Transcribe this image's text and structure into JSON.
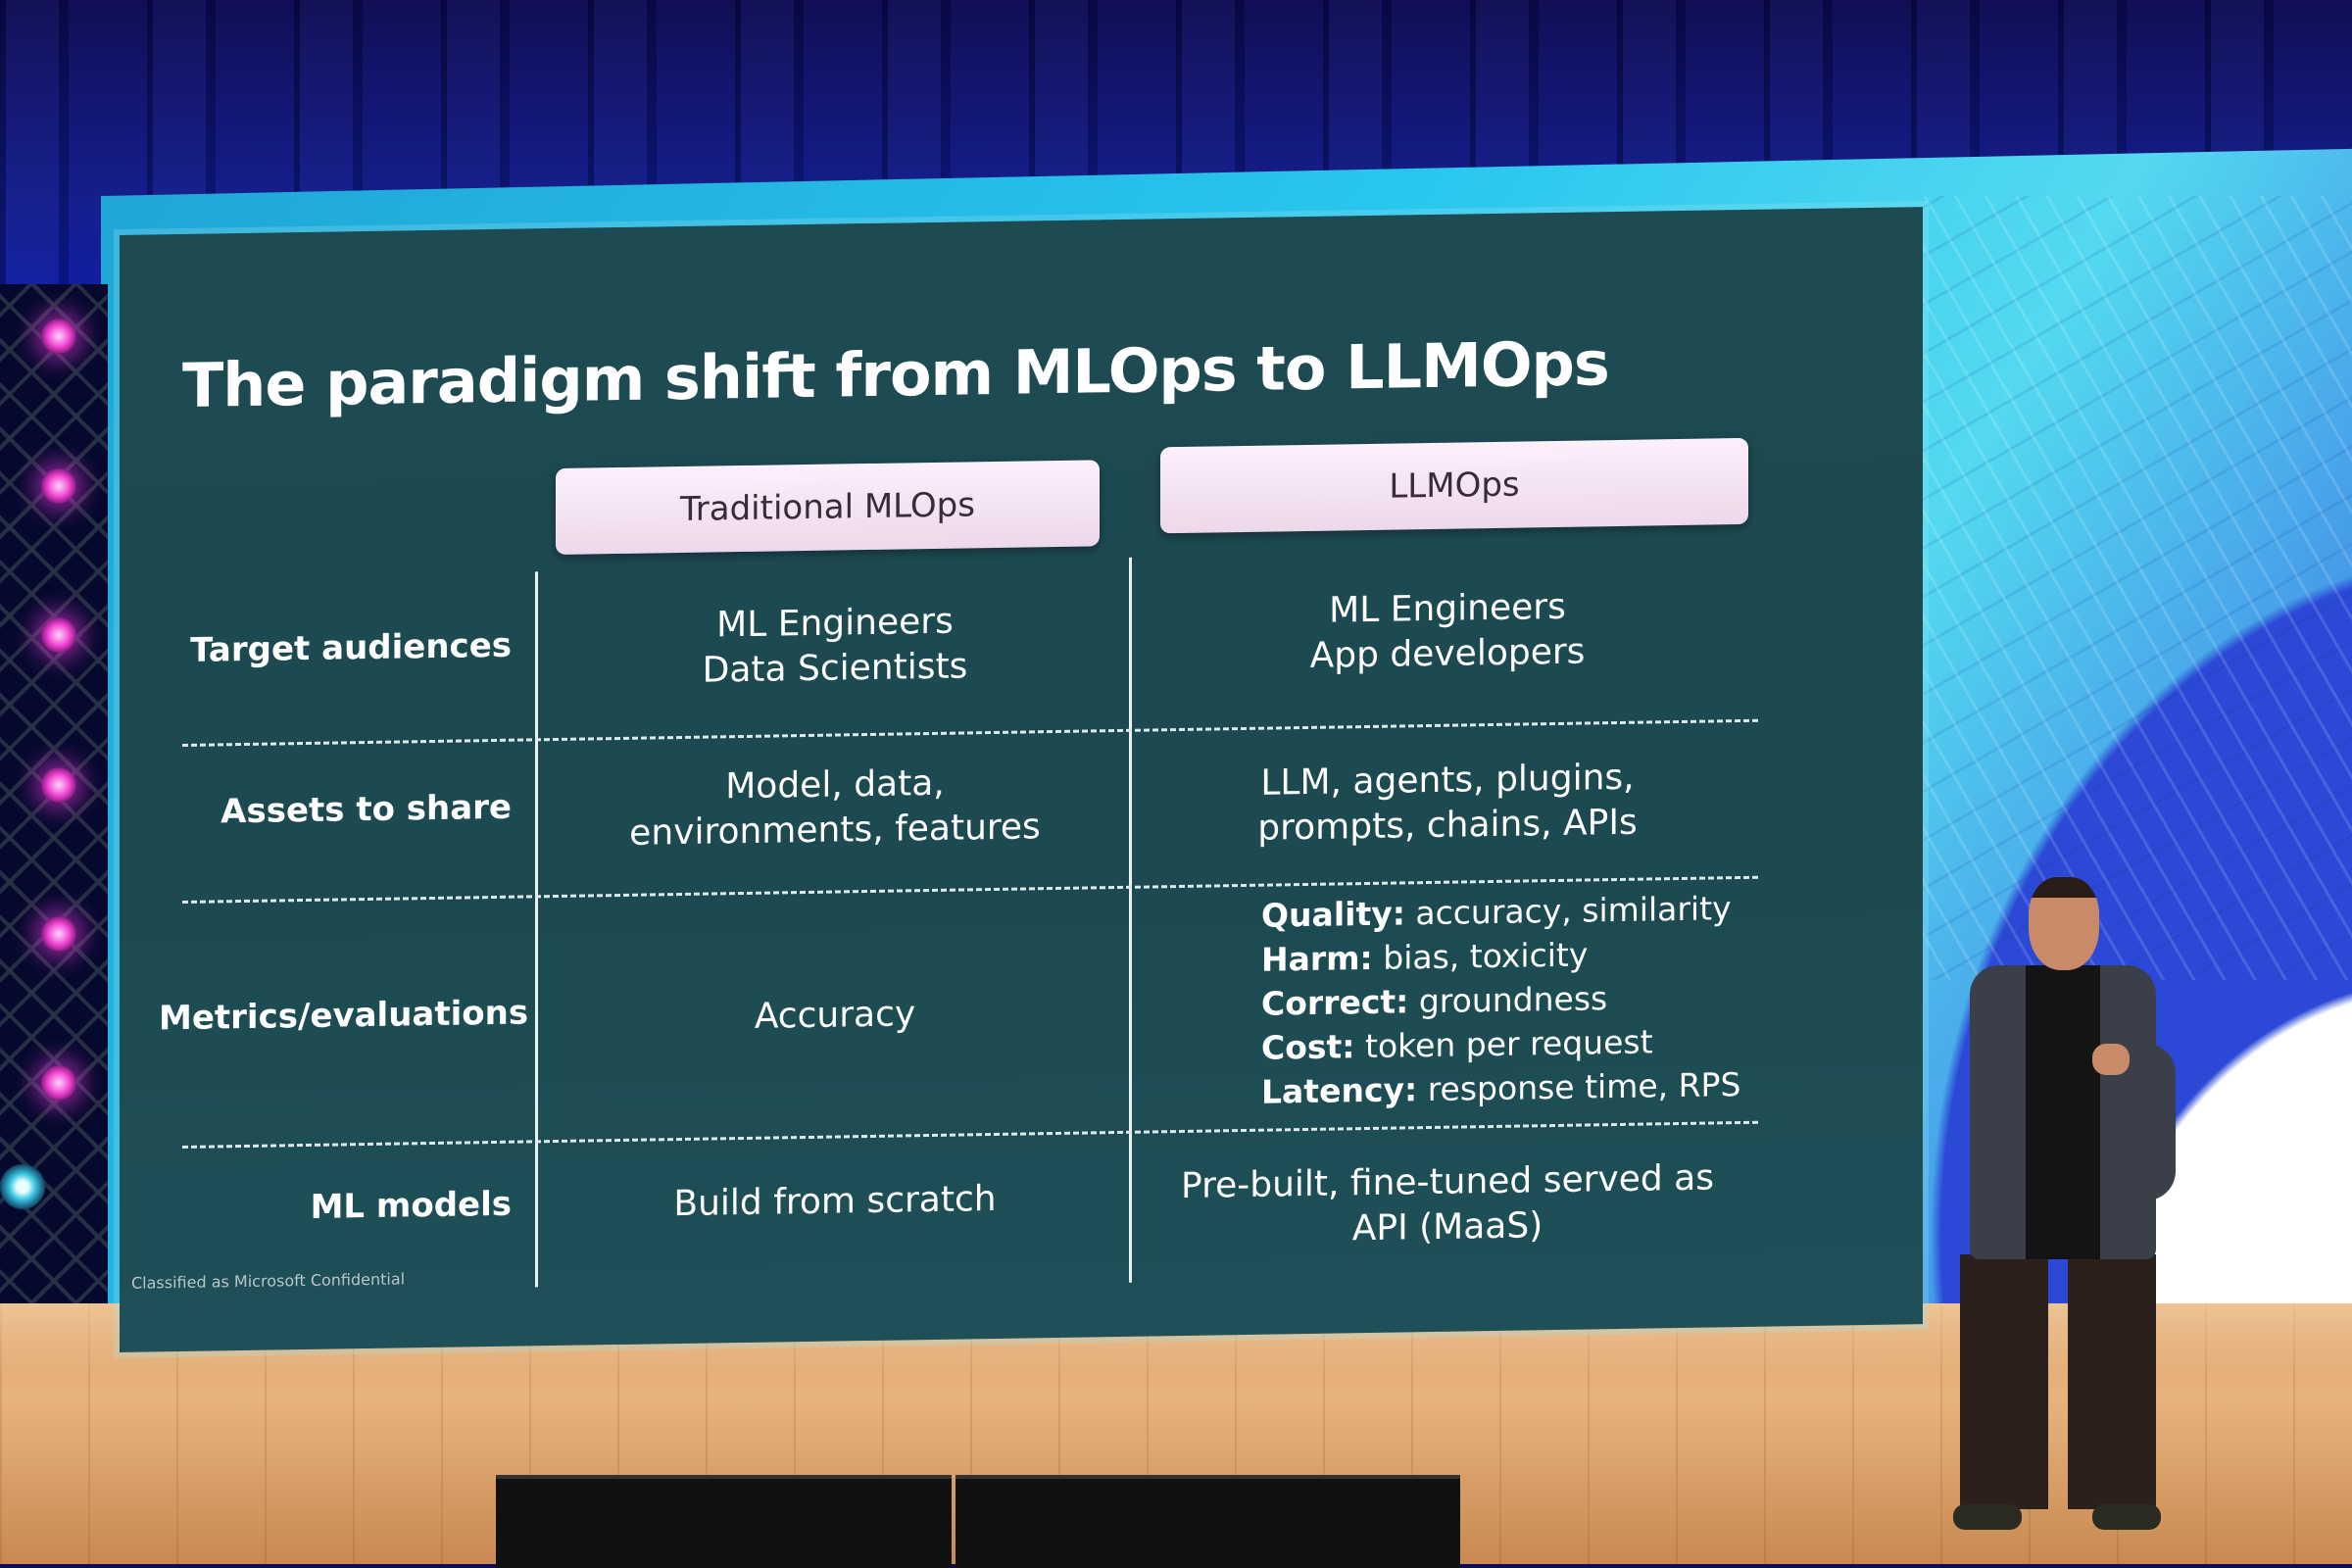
{
  "slide": {
    "title": "The paradigm shift from MLOps to LLMOps",
    "columns": [
      "Traditional MLOps",
      "LLMOps"
    ],
    "rows": [
      {
        "label": "Target audiences",
        "mlops": [
          "ML Engineers",
          "Data Scientists"
        ],
        "llmops": [
          "ML Engineers",
          "App developers"
        ]
      },
      {
        "label": "Assets to share",
        "mlops": [
          "Model, data,",
          "environments, features"
        ],
        "llmops": [
          "LLM, agents, plugins,",
          "prompts, chains, APIs"
        ]
      },
      {
        "label": "Metrics/evaluations",
        "mlops": [
          "Accuracy"
        ],
        "llmops_metrics": [
          {
            "name": "Quality:",
            "value": "accuracy, similarity"
          },
          {
            "name": "Harm:",
            "value": "bias, toxicity"
          },
          {
            "name": "Correct:",
            "value": "groundness"
          },
          {
            "name": "Cost:",
            "value": "token per request"
          },
          {
            "name": "Latency:",
            "value": "response time, RPS"
          }
        ]
      },
      {
        "label": "ML models",
        "mlops": [
          "Build from scratch"
        ],
        "llmops": [
          "Pre-built, fine-tuned served as",
          "API (MaaS)"
        ]
      }
    ],
    "footer": "Classified as Microsoft Confidential"
  },
  "colors": {
    "slide_background": "#1e4a52",
    "header_pill": "#f3e4f1",
    "backdrop": "#28c6ee",
    "stage_lights": "#f040d0"
  }
}
